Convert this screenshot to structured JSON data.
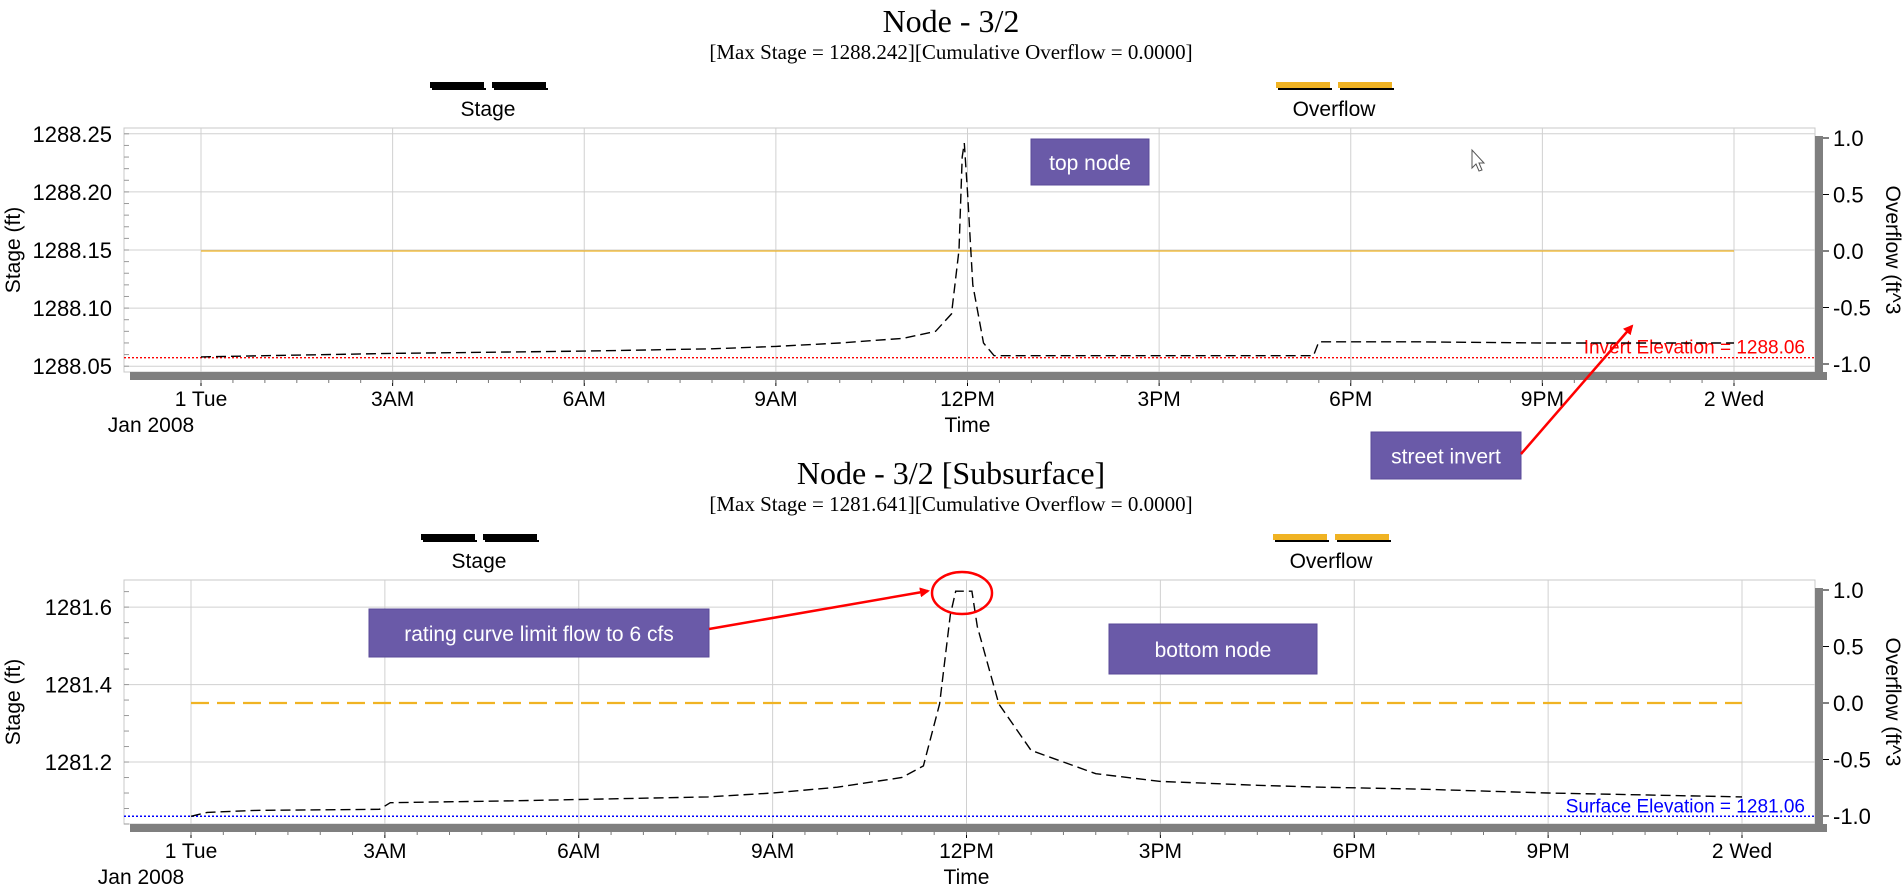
{
  "charts": [
    {
      "title": "Node - 3/2",
      "subtitle": "[Max  Stage = 1288.242][Cumulative Overflow = 0.0000]",
      "legend": [
        {
          "label": "Stage",
          "color": "#000000"
        },
        {
          "label": "Overflow",
          "color": "#f0b323"
        }
      ],
      "ylabel": "Stage (ft)",
      "y2label": "Overflow (ft^3",
      "xlabel": "Time",
      "date_label": "Jan 2008",
      "yticks": [
        "1288.05",
        "1288.10",
        "1288.15",
        "1288.20",
        "1288.25"
      ],
      "y2ticks": [
        "-1.0",
        "-0.5",
        "0.0",
        "0.5",
        "1.0"
      ],
      "xticks": [
        "1 Tue",
        "3AM",
        "6AM",
        "9AM",
        "12PM",
        "3PM",
        "6PM",
        "9PM",
        "2 Wed"
      ],
      "ref_line_label": "Invert Elevation = 1288.06",
      "ref_line_color": "#ff0000"
    },
    {
      "title": "Node - 3/2 [Subsurface]",
      "subtitle": "[Max  Stage = 1281.641][Cumulative Overflow = 0.0000]",
      "legend": [
        {
          "label": "Stage",
          "color": "#000000"
        },
        {
          "label": "Overflow",
          "color": "#f0b323"
        }
      ],
      "ylabel": "Stage (ft)",
      "y2label": "Overflow (ft^3",
      "xlabel": "Time",
      "date_label": "Jan 2008",
      "yticks": [
        "1281.2",
        "1281.4",
        "1281.6"
      ],
      "y2ticks": [
        "-1.0",
        "-0.5",
        "0.0",
        "0.5",
        "1.0"
      ],
      "xticks": [
        "1 Tue",
        "3AM",
        "6AM",
        "9AM",
        "12PM",
        "3PM",
        "6PM",
        "9PM",
        "2 Wed"
      ],
      "ref_line_label": "Surface Elevation = 1281.06",
      "ref_line_color": "#0000ff"
    }
  ],
  "annotations": {
    "top_node": "top node",
    "street_invert": "street invert",
    "rating_curve": "rating curve limit flow to 6 cfs",
    "bottom_node": "bottom node"
  },
  "colors": {
    "callout_bg": "#6a5aa8",
    "callout_text": "#ffffff",
    "arrow": "#ff0000",
    "grid": "#d0d0d0",
    "stage": "#000000",
    "overflow": "#f0b323"
  },
  "chart_data": [
    {
      "type": "line",
      "title": "Node - 3/2",
      "xlabel": "Time",
      "ylabel": "Stage (ft)",
      "y2label": "Overflow (ft^3",
      "xlim": [
        "2008-01-01 00:00",
        "2008-01-02 00:00"
      ],
      "ylim": [
        1288.045,
        1288.255
      ],
      "y2lim": [
        -1.0,
        1.0
      ],
      "grid": true,
      "legend_position": "top",
      "series": [
        {
          "name": "Stage",
          "axis": "left",
          "style": "dashed",
          "points": [
            [
              "2008-01-01 00:00",
              1288.058
            ],
            [
              "2008-01-01 01:00",
              1288.059
            ],
            [
              "2008-01-01 03:00",
              1288.061
            ],
            [
              "2008-01-01 06:00",
              1288.063
            ],
            [
              "2008-01-01 08:00",
              1288.065
            ],
            [
              "2008-01-01 09:00",
              1288.067
            ],
            [
              "2008-01-01 10:00",
              1288.07
            ],
            [
              "2008-01-01 11:00",
              1288.074
            ],
            [
              "2008-01-01 11:30",
              1288.08
            ],
            [
              "2008-01-01 11:45",
              1288.095
            ],
            [
              "2008-01-01 11:52",
              1288.15
            ],
            [
              "2008-01-01 11:55",
              1288.23
            ],
            [
              "2008-01-01 11:57",
              1288.242
            ],
            [
              "2008-01-01 12:00",
              1288.2
            ],
            [
              "2008-01-01 12:05",
              1288.12
            ],
            [
              "2008-01-01 12:15",
              1288.07
            ],
            [
              "2008-01-01 12:25",
              1288.059
            ],
            [
              "2008-01-01 15:00",
              1288.059
            ],
            [
              "2008-01-01 17:25",
              1288.059
            ],
            [
              "2008-01-01 17:30",
              1288.071
            ],
            [
              "2008-01-01 19:00",
              1288.071
            ],
            [
              "2008-01-01 21:00",
              1288.07
            ],
            [
              "2008-01-02 00:00",
              1288.07
            ]
          ]
        },
        {
          "name": "Overflow",
          "axis": "right",
          "style": "solid",
          "points": [
            [
              "2008-01-01 00:00",
              0.0
            ],
            [
              "2008-01-02 00:00",
              0.0
            ]
          ]
        }
      ],
      "reference_lines": [
        {
          "label": "Invert Elevation = 1288.06",
          "y": 1288.059,
          "color": "#ff0000"
        }
      ]
    },
    {
      "type": "line",
      "title": "Node - 3/2 [Subsurface]",
      "xlabel": "Time",
      "ylabel": "Stage (ft)",
      "y2label": "Overflow (ft^3",
      "xlim": [
        "2008-01-01 00:00",
        "2008-01-02 00:00"
      ],
      "ylim": [
        1281.04,
        1281.67
      ],
      "y2lim": [
        -1.0,
        1.0
      ],
      "grid": true,
      "legend_position": "top",
      "series": [
        {
          "name": "Stage",
          "axis": "left",
          "style": "dashed",
          "points": [
            [
              "2008-01-01 00:00",
              1281.06
            ],
            [
              "2008-01-01 00:15",
              1281.07
            ],
            [
              "2008-01-01 01:00",
              1281.075
            ],
            [
              "2008-01-01 02:55",
              1281.078
            ],
            [
              "2008-01-01 03:05",
              1281.095
            ],
            [
              "2008-01-01 05:00",
              1281.1
            ],
            [
              "2008-01-01 08:00",
              1281.11
            ],
            [
              "2008-01-01 09:00",
              1281.12
            ],
            [
              "2008-01-01 10:00",
              1281.135
            ],
            [
              "2008-01-01 11:00",
              1281.16
            ],
            [
              "2008-01-01 11:20",
              1281.19
            ],
            [
              "2008-01-01 11:35",
              1281.35
            ],
            [
              "2008-01-01 11:45",
              1281.58
            ],
            [
              "2008-01-01 11:50",
              1281.641
            ],
            [
              "2008-01-01 12:05",
              1281.641
            ],
            [
              "2008-01-01 12:10",
              1281.55
            ],
            [
              "2008-01-01 12:30",
              1281.35
            ],
            [
              "2008-01-01 13:00",
              1281.23
            ],
            [
              "2008-01-01 14:00",
              1281.17
            ],
            [
              "2008-01-01 15:00",
              1281.15
            ],
            [
              "2008-01-01 16:30",
              1281.14
            ],
            [
              "2008-01-01 17:30",
              1281.135
            ],
            [
              "2008-01-01 19:00",
              1281.13
            ],
            [
              "2008-01-01 21:00",
              1281.12
            ],
            [
              "2008-01-02 00:00",
              1281.11
            ]
          ]
        },
        {
          "name": "Overflow",
          "axis": "right",
          "style": "dashed",
          "points": [
            [
              "2008-01-01 00:00",
              0.0
            ],
            [
              "2008-01-02 00:00",
              0.0
            ]
          ]
        }
      ],
      "reference_lines": [
        {
          "label": "Surface Elevation = 1281.06",
          "y": 1281.06,
          "color": "#0000ff"
        }
      ]
    }
  ]
}
